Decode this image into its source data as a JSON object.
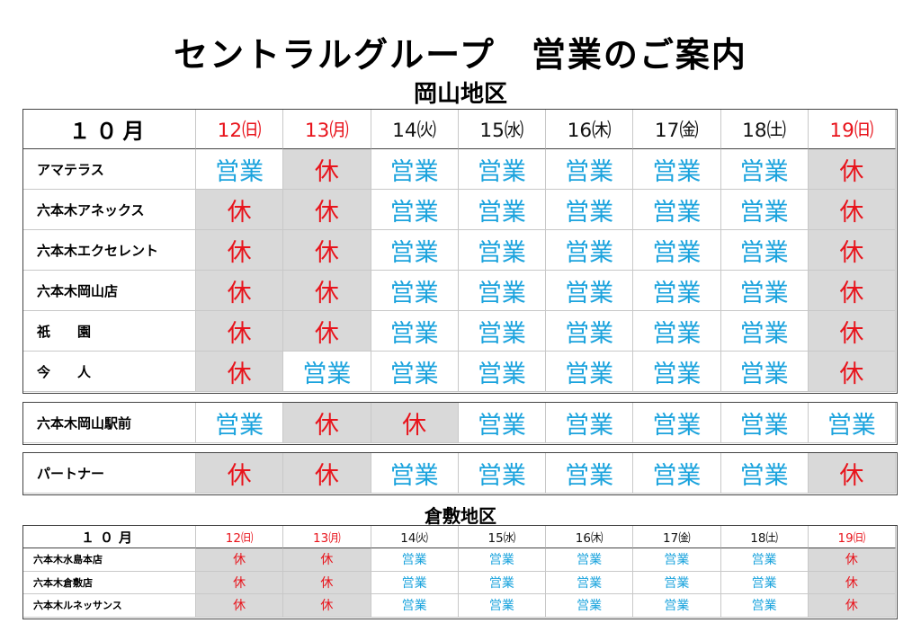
{
  "title": "セントラルグループ　営業のご案内",
  "okayama": {
    "region": "岡山地区",
    "month": "１０月",
    "dates": [
      "12㈰",
      "13㈪",
      "14㈫",
      "15㈬",
      "16㈭",
      "17㈮",
      "18㈯",
      "19㈰"
    ],
    "groups": [
      {
        "rows": [
          {
            "name": "アマテラス",
            "cells": [
              "営業",
              "休",
              "営業",
              "営業",
              "営業",
              "営業",
              "営業",
              "休"
            ]
          },
          {
            "name": "六本木アネックス",
            "cells": [
              "休",
              "休",
              "営業",
              "営業",
              "営業",
              "営業",
              "営業",
              "休"
            ]
          },
          {
            "name": "六本木エクセレント",
            "cells": [
              "休",
              "休",
              "営業",
              "営業",
              "営業",
              "営業",
              "営業",
              "休"
            ]
          },
          {
            "name": "六本木岡山店",
            "cells": [
              "休",
              "休",
              "営業",
              "営業",
              "営業",
              "営業",
              "営業",
              "休"
            ]
          },
          {
            "name": "祇　　園",
            "cells": [
              "休",
              "休",
              "営業",
              "営業",
              "営業",
              "営業",
              "営業",
              "休"
            ]
          },
          {
            "name": "今　　人",
            "cells": [
              "休",
              "営業",
              "営業",
              "営業",
              "営業",
              "営業",
              "営業",
              "休"
            ]
          }
        ]
      },
      {
        "rows": [
          {
            "name": "六本木岡山駅前",
            "cells": [
              "営業",
              "休",
              "休",
              "営業",
              "営業",
              "営業",
              "営業",
              "営業"
            ]
          }
        ]
      },
      {
        "rows": [
          {
            "name": "パートナー",
            "cells": [
              "休",
              "休",
              "営業",
              "営業",
              "営業",
              "営業",
              "営業",
              "休"
            ]
          }
        ]
      }
    ]
  },
  "kurashiki": {
    "region": "倉敷地区",
    "month": "１０月",
    "dates": [
      "12㈰",
      "13㈪",
      "14㈫",
      "15㈬",
      "16㈭",
      "17㈮",
      "18㈯",
      "19㈰"
    ],
    "rows": [
      {
        "name": "六本木水島本店",
        "cells": [
          "休",
          "休",
          "営業",
          "営業",
          "営業",
          "営業",
          "営業",
          "休"
        ]
      },
      {
        "name": "六本木倉敷店",
        "cells": [
          "休",
          "休",
          "営業",
          "営業",
          "営業",
          "営業",
          "営業",
          "休"
        ]
      },
      {
        "name": "六本木ルネッサンス",
        "cells": [
          "休",
          "休",
          "営業",
          "営業",
          "営業",
          "営業",
          "営業",
          "休"
        ]
      }
    ]
  }
}
